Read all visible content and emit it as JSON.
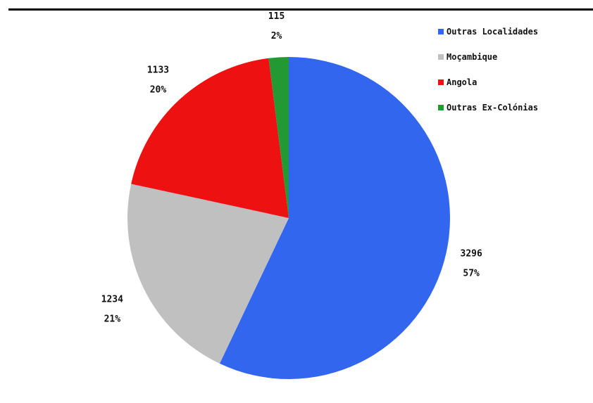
{
  "chart_data": {
    "type": "pie",
    "categories": [
      "Outras Localidades",
      "Moçambique",
      "Angola",
      "Outras Ex-Colónias"
    ],
    "values": [
      3296,
      1234,
      1133,
      115
    ],
    "percent_labels": [
      "57%",
      "21%",
      "20%",
      "2%"
    ],
    "value_labels": [
      "3296",
      "1234",
      "1133",
      "115"
    ],
    "colors": [
      "#3366ee",
      "#c0c0c0",
      "#ee1111",
      "#229933"
    ],
    "legend_position": "top-right"
  },
  "legend": [
    {
      "label": "Outras Localidades",
      "color": "#3366ee"
    },
    {
      "label": "Moçambique",
      "color": "#c0c0c0"
    },
    {
      "label": "Angola",
      "color": "#ee1111"
    },
    {
      "label": "Outras Ex-Colónias",
      "color": "#229933"
    }
  ]
}
